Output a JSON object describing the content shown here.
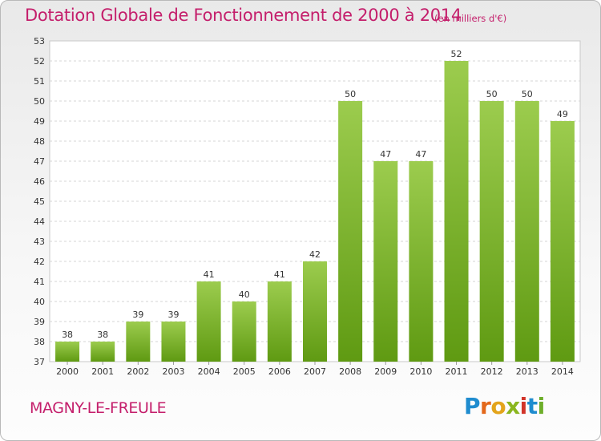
{
  "header": {
    "title": "Dotation Globale de Fonctionnement de 2000 à 2014",
    "unit": "(en milliers d'€)"
  },
  "footer": {
    "commune": "MAGNY-LE-FREULE",
    "logo_letters": [
      "P",
      "r",
      "o",
      "x",
      "i",
      "t",
      "i"
    ]
  },
  "chart_data": {
    "type": "bar",
    "title": "Dotation Globale de Fonctionnement de 2000 à 2014",
    "subtitle": "(en milliers d'€)",
    "categories": [
      "2000",
      "2001",
      "2002",
      "2003",
      "2004",
      "2005",
      "2006",
      "2007",
      "2008",
      "2009",
      "2010",
      "2011",
      "2012",
      "2013",
      "2014"
    ],
    "values": [
      38,
      38,
      39,
      39,
      41,
      40,
      41,
      42,
      50,
      47,
      47,
      52,
      50,
      50,
      49
    ],
    "ylim": [
      37,
      53
    ],
    "yticks": [
      37,
      38,
      39,
      40,
      41,
      42,
      43,
      44,
      45,
      46,
      47,
      48,
      49,
      50,
      51,
      52,
      53
    ],
    "grid": true,
    "bar_color_top": "#9ccc4e",
    "bar_color_bottom": "#5f9a12",
    "title_color": "#c41e6b"
  }
}
